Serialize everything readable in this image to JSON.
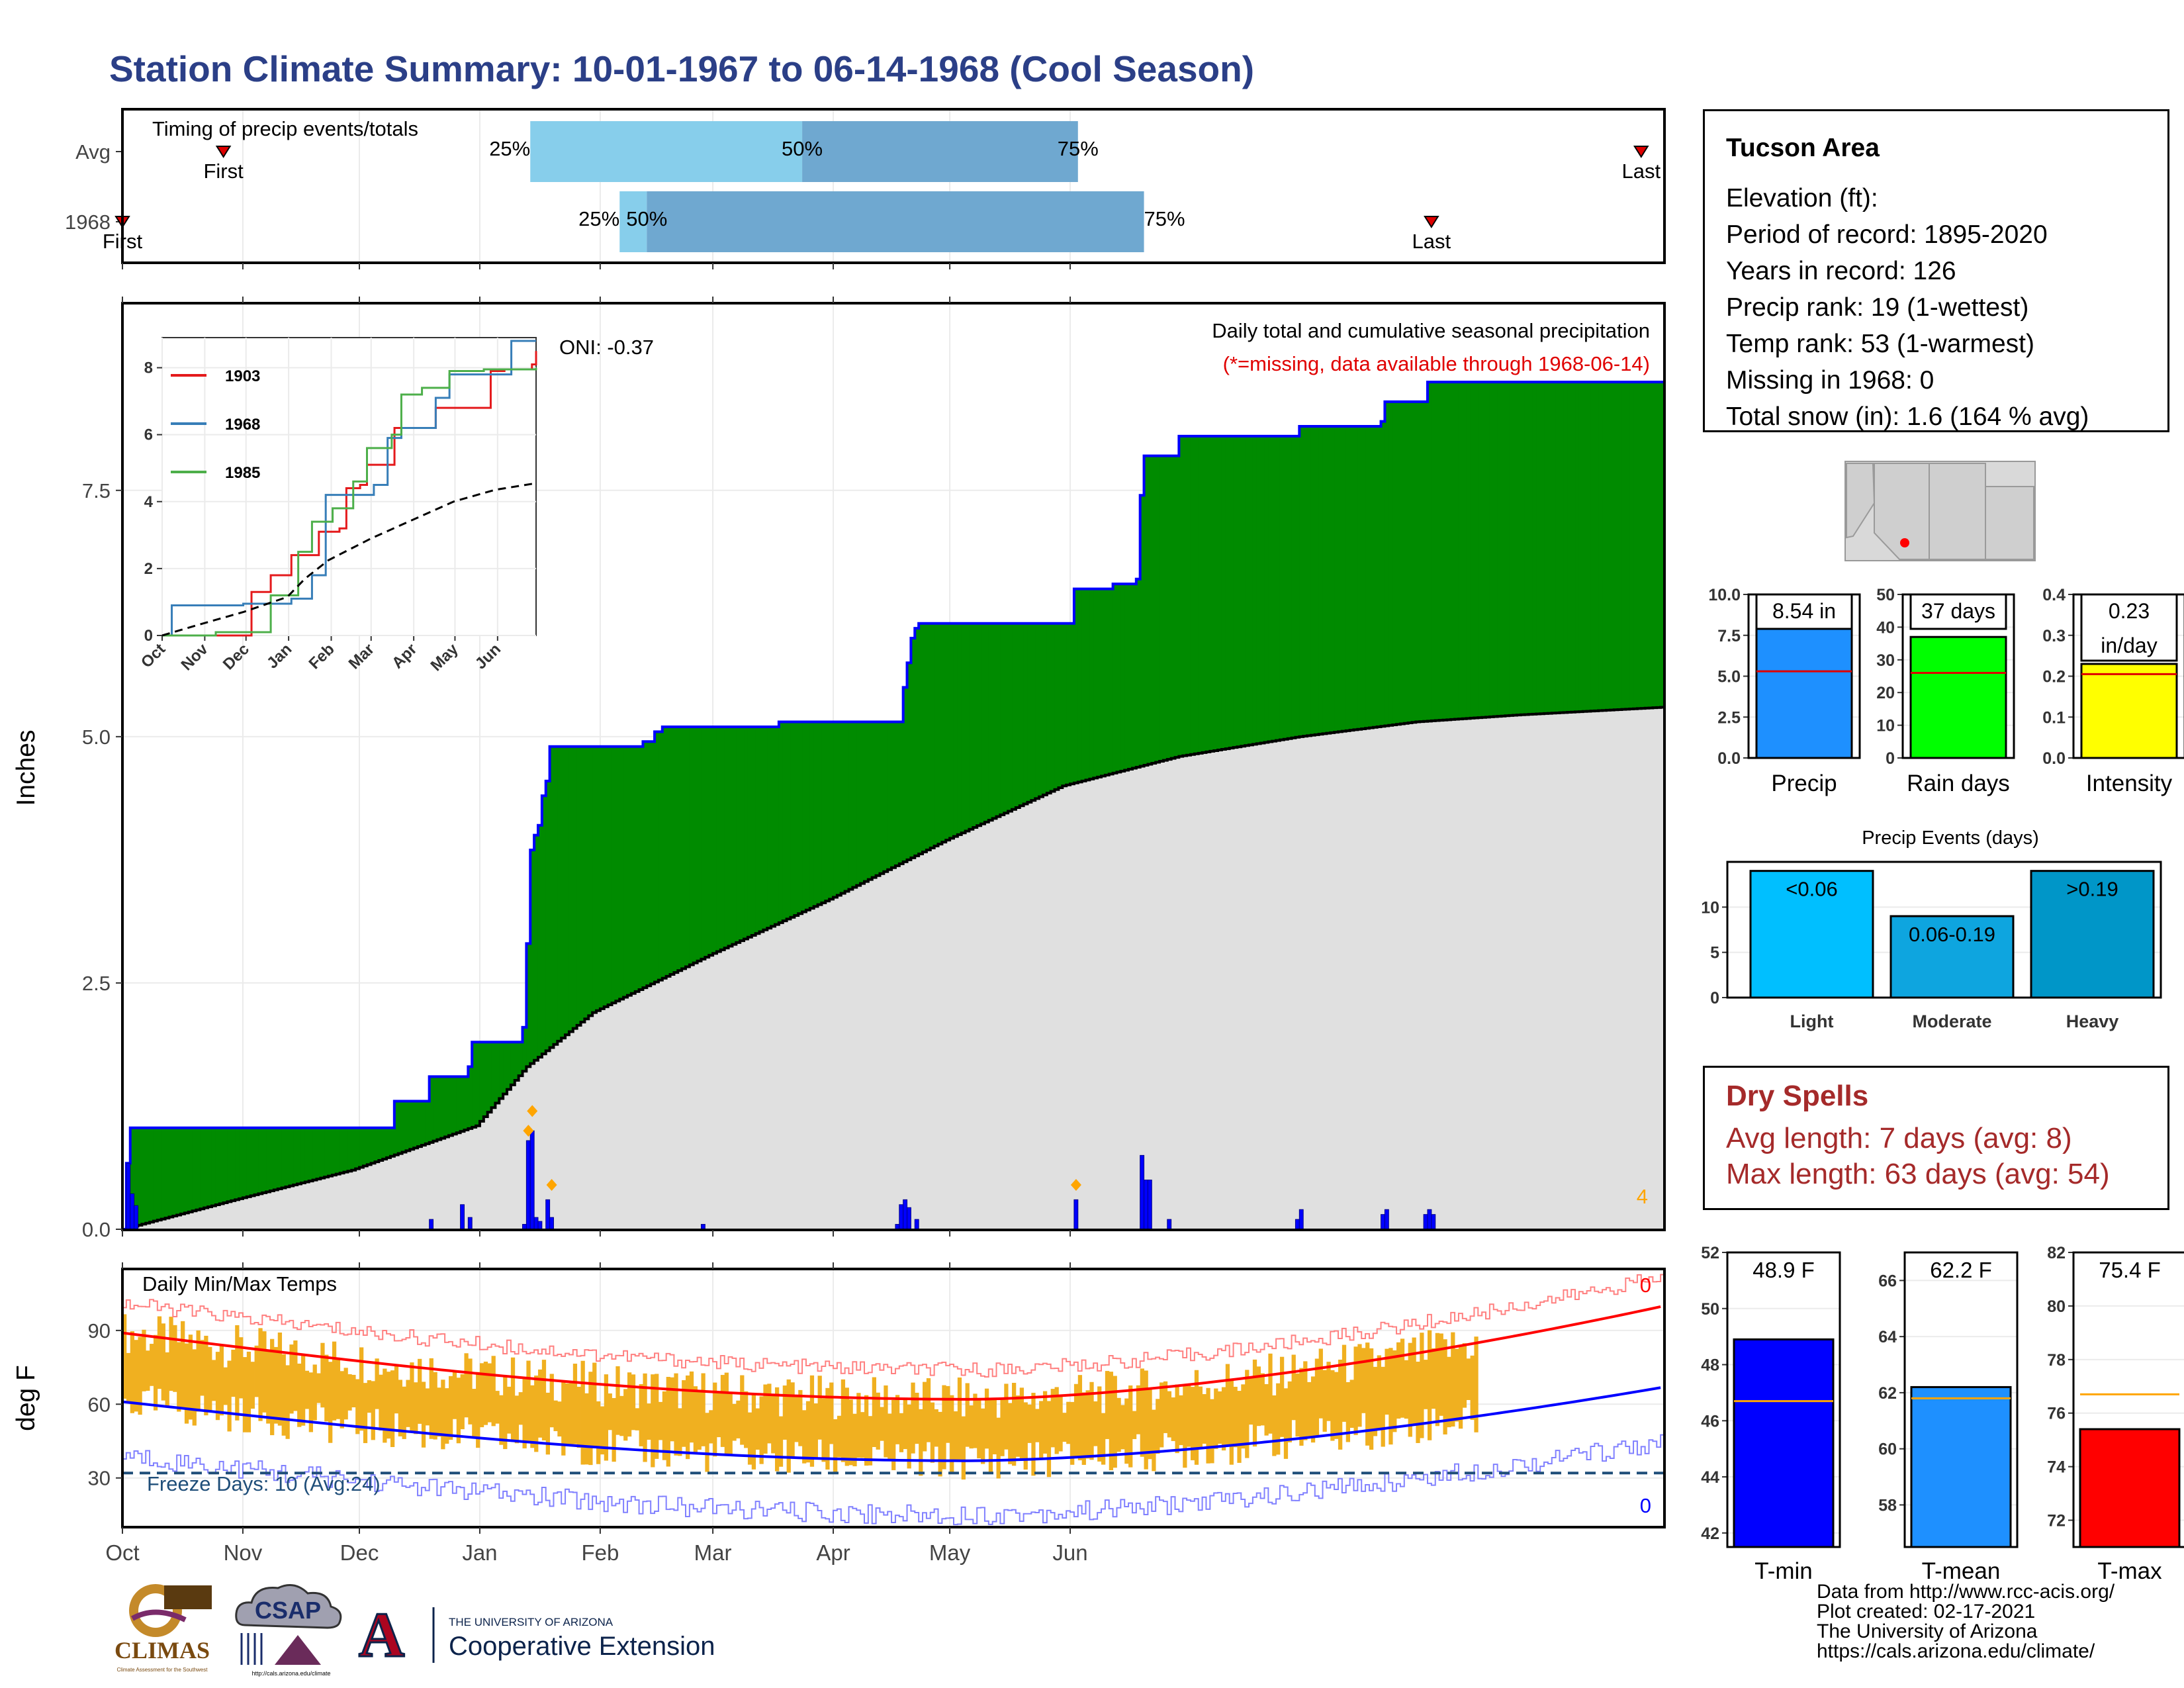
{
  "title": "Station Climate Summary: 10-01-1967 to 06-14-1968 (Cool Season)",
  "colors": {
    "title": "#2b3f87",
    "green_fill": "#008b00",
    "brown_fill": "#8b5a14",
    "gray_fill": "#e0e0e0",
    "blue_line": "#0000ff",
    "light_blue": "#87ceeb",
    "steel_blue": "#6fa8d0",
    "orange_bar": "#f0b020",
    "dry_red": "#a52a2a",
    "freeze_blue": "#1f4e79"
  },
  "timing": {
    "title": "Timing of precip events/totals",
    "rows": [
      {
        "label": "Avg",
        "first_day": 27,
        "q25": 106,
        "q50": 176,
        "q75": 247,
        "last_day": 392,
        "first_label": "First",
        "last_label": "Last"
      },
      {
        "label": "1968",
        "first_day": 1,
        "q25": 129,
        "q50": 136,
        "q75": 264,
        "last_day": 338,
        "first_label": "First",
        "last_label": "Last"
      }
    ],
    "pct_labels": [
      "25%",
      "50%",
      "75%"
    ]
  },
  "month_labels": [
    "Oct",
    "Nov",
    "Dec",
    "Jan",
    "Feb",
    "Mar",
    "Apr",
    "May",
    "Jun"
  ],
  "month_start_days": [
    1,
    32,
    62,
    93,
    124,
    153,
    184,
    214,
    245
  ],
  "precip_panel": {
    "ylabel": "Inches",
    "yticks": [
      "0.0",
      "2.5",
      "5.0",
      "7.5"
    ],
    "ytick_values": [
      0,
      2.5,
      5,
      7.5
    ],
    "ylim": [
      0,
      9.4
    ],
    "title": "Daily total and cumulative seasonal precipitation",
    "subtitle": "(*=missing, data available through 1968-06-14)",
    "oni": "ONI: -0.37",
    "corner_count": "4"
  },
  "inset": {
    "legend": [
      "1903",
      "1968",
      "1985"
    ],
    "legend_colors": [
      "#e41a1c",
      "#377eb8",
      "#4daf4a"
    ],
    "yticks": [
      "0",
      "2",
      "4",
      "6",
      "8"
    ],
    "xticks": [
      "Oct",
      "Nov",
      "Dec",
      "Jan",
      "Feb",
      "Mar",
      "Apr",
      "May",
      "Jun"
    ]
  },
  "temp_panel": {
    "title": "Daily Min/Max Temps",
    "ylabel": "deg F",
    "yticks": [
      "30",
      "60",
      "90"
    ],
    "ytick_values": [
      30,
      60,
      90
    ],
    "ylim": [
      10,
      115
    ],
    "freeze_label": "Freeze Days: 10 (Avg:24)",
    "freeze_value": 32,
    "top_count": "0",
    "bottom_count": "0"
  },
  "station_info": {
    "name": "Tucson Area",
    "lines": [
      "Elevation (ft):",
      "Period of record: 1895-2020",
      "Years in record: 126",
      "Precip rank: 19 (1-wettest)",
      "Temp rank: 53 (1-warmest)",
      "Missing in 1968: 0",
      "Total snow (in): 1.6 (164 % avg)"
    ]
  },
  "summary_bars": [
    {
      "name": "Precip",
      "value_label": "8.54 in",
      "value": 8.54,
      "avg": 5.3,
      "ymax": 10,
      "yticks": [
        "0.0",
        "2.5",
        "5.0",
        "7.5",
        "10.0"
      ],
      "ytick_values": [
        0,
        2.5,
        5,
        7.5,
        10
      ],
      "color": "#1e90ff"
    },
    {
      "name": "Rain days",
      "value_label": "37 days",
      "value": 37,
      "avg": 26,
      "ymax": 50,
      "yticks": [
        "0",
        "10",
        "20",
        "30",
        "40",
        "50"
      ],
      "ytick_values": [
        0,
        10,
        20,
        30,
        40,
        50
      ],
      "color": "#00ff00"
    },
    {
      "name": "Intensity",
      "value_label": "0.23",
      "value_label2": "in/day",
      "value": 0.23,
      "avg": 0.205,
      "ymax": 0.4,
      "yticks": [
        "0.0",
        "0.1",
        "0.2",
        "0.3",
        "0.4"
      ],
      "ytick_values": [
        0,
        0.1,
        0.2,
        0.3,
        0.4
      ],
      "color": "#ffff00"
    }
  ],
  "precip_events": {
    "title": "Precip Events (days)",
    "categories": [
      "Light",
      "Moderate",
      "Heavy"
    ],
    "labels": [
      "<0.06",
      "0.06-0.19",
      ">0.19"
    ],
    "values": [
      14,
      9,
      14
    ],
    "colors": [
      "#00bfff",
      "#0ea5df",
      "#0096c8"
    ],
    "yticks": [
      "0",
      "5",
      "10"
    ],
    "ytick_values": [
      0,
      5,
      10
    ]
  },
  "dry_spells": {
    "title": "Dry Spells",
    "avg_line": "Avg length: 7 days (avg: 8)",
    "max_line": "Max length: 63 days (avg: 54)"
  },
  "temp_bars": [
    {
      "name": "T-min",
      "value_label": "48.9 F",
      "value": 48.9,
      "avg": 46.7,
      "ylim": [
        41.5,
        52
      ],
      "yticks": [
        "42",
        "44",
        "46",
        "48",
        "50",
        "52"
      ],
      "ytick_values": [
        42,
        44,
        46,
        48,
        50,
        52
      ],
      "color": "#0000ff"
    },
    {
      "name": "T-mean",
      "value_label": "62.2 F",
      "value": 62.2,
      "avg": 61.8,
      "ylim": [
        56.5,
        67
      ],
      "yticks": [
        "58",
        "60",
        "62",
        "64",
        "66"
      ],
      "ytick_values": [
        58,
        60,
        62,
        64,
        66
      ],
      "color": "#1e90ff"
    },
    {
      "name": "T-max",
      "value_label": "75.4 F",
      "value": 75.4,
      "avg": 76.7,
      "ylim": [
        71,
        82
      ],
      "yticks": [
        "72",
        "74",
        "76",
        "78",
        "80",
        "82"
      ],
      "ytick_values": [
        72,
        74,
        76,
        78,
        80,
        82
      ],
      "color": "#ff0000"
    }
  ],
  "credits": [
    "Data from http://www.rcc-acis.org/",
    "Plot created: 02-17-2021",
    "The University of Arizona",
    "https://cals.arizona.edu/climate/"
  ],
  "logos": {
    "climas": "CLIMAS",
    "climas_sub": "Climate Assessment for the Southwest",
    "csap": "CSAP",
    "csap_sub": "http://cals.arizona.edu/climate",
    "ua_small": "THE UNIVERSITY OF ARIZONA",
    "ua_big": "Cooperative Extension",
    "ua_letter": "A"
  },
  "chart_data": {
    "type": "area",
    "title": "Daily total and cumulative seasonal precipitation",
    "xlabel": "",
    "ylabel": "Inches",
    "ylim": [
      0,
      9.4
    ],
    "cumulative_1968": [
      [
        1,
        0.0
      ],
      [
        2,
        0.67
      ],
      [
        3,
        1.03
      ],
      [
        70,
        1.03
      ],
      [
        71,
        1.3
      ],
      [
        79,
        1.3
      ],
      [
        80,
        1.55
      ],
      [
        89,
        1.55
      ],
      [
        90,
        1.65
      ],
      [
        91,
        1.9
      ],
      [
        103,
        1.9
      ],
      [
        104,
        2.05
      ],
      [
        105,
        2.9
      ],
      [
        106,
        3.85
      ],
      [
        107,
        4.0
      ],
      [
        108,
        4.1
      ],
      [
        109,
        4.4
      ],
      [
        110,
        4.55
      ],
      [
        111,
        4.9
      ],
      [
        135,
        4.95
      ],
      [
        138,
        5.05
      ],
      [
        140,
        5.1
      ],
      [
        170,
        5.15
      ],
      [
        201,
        5.15
      ],
      [
        202,
        5.5
      ],
      [
        203,
        5.75
      ],
      [
        204,
        6.0
      ],
      [
        205,
        6.1
      ],
      [
        206,
        6.15
      ],
      [
        245,
        6.15
      ],
      [
        246,
        6.5
      ],
      [
        256,
        6.55
      ],
      [
        262,
        6.6
      ],
      [
        263,
        7.45
      ],
      [
        264,
        7.85
      ],
      [
        272,
        7.85
      ],
      [
        273,
        8.05
      ],
      [
        303,
        8.05
      ],
      [
        304,
        8.15
      ],
      [
        325,
        8.2
      ],
      [
        326,
        8.4
      ],
      [
        336,
        8.4
      ],
      [
        337,
        8.6
      ],
      [
        398,
        8.6
      ]
    ],
    "average_cumulative": [
      [
        1,
        0.0
      ],
      [
        30,
        0.3
      ],
      [
        60,
        0.6
      ],
      [
        92,
        1.05
      ],
      [
        105,
        1.65
      ],
      [
        122,
        2.2
      ],
      [
        153,
        2.8
      ],
      [
        183,
        3.35
      ],
      [
        213,
        3.95
      ],
      [
        243,
        4.5
      ],
      [
        273,
        4.8
      ],
      [
        304,
        5.0
      ],
      [
        334,
        5.15
      ],
      [
        360,
        5.22
      ],
      [
        398,
        5.3
      ]
    ],
    "daily_precip": [
      [
        2,
        0.67
      ],
      [
        3,
        0.36
      ],
      [
        4,
        0.24
      ],
      [
        80,
        0.1
      ],
      [
        88,
        0.25
      ],
      [
        90,
        0.12
      ],
      [
        104,
        0.05
      ],
      [
        105,
        0.9
      ],
      [
        106,
        1.0
      ],
      [
        107,
        0.12
      ],
      [
        108,
        0.08
      ],
      [
        110,
        0.3
      ],
      [
        111,
        0.12
      ],
      [
        150,
        0.05
      ],
      [
        200,
        0.05
      ],
      [
        201,
        0.25
      ],
      [
        202,
        0.3
      ],
      [
        203,
        0.22
      ],
      [
        205,
        0.1
      ],
      [
        246,
        0.3
      ],
      [
        263,
        0.75
      ],
      [
        264,
        0.5
      ],
      [
        265,
        0.5
      ],
      [
        270,
        0.1
      ],
      [
        303,
        0.1
      ],
      [
        304,
        0.2
      ],
      [
        325,
        0.15
      ],
      [
        326,
        0.2
      ],
      [
        336,
        0.15
      ],
      [
        337,
        0.2
      ],
      [
        338,
        0.15
      ]
    ],
    "snow_markers": [
      [
        105,
        1.0
      ],
      [
        106,
        1.2
      ],
      [
        111,
        0.45
      ],
      [
        246,
        0.45
      ]
    ]
  }
}
